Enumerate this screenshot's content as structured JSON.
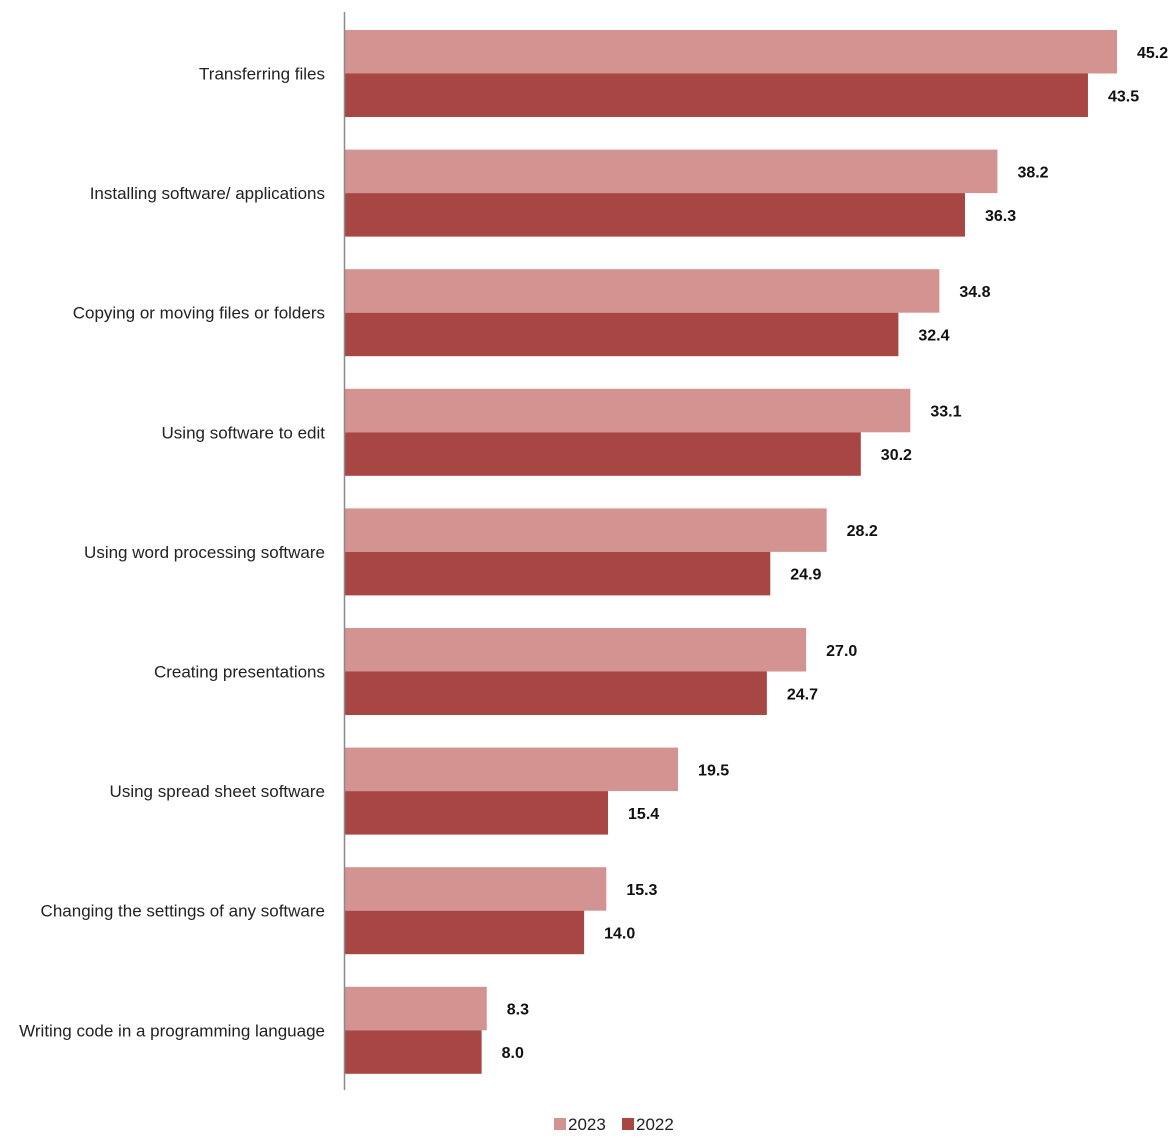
{
  "chart_data": {
    "type": "bar",
    "orientation": "horizontal",
    "title": "",
    "xlabel": "",
    "ylabel": "",
    "xlim": [
      0,
      45.2
    ],
    "grid": false,
    "legend_position": "bottom-center",
    "categories": [
      "Transferring files",
      "Installing software/ applications",
      "Copying or moving files or folders",
      "Using software to edit",
      "Using word processing software",
      "Creating presentations",
      "Using spread sheet software",
      "Changing the settings of any software",
      "Writing code in a programming language"
    ],
    "series": [
      {
        "name": "2023",
        "color": "#d39391",
        "values": [
          45.2,
          38.2,
          34.8,
          33.1,
          28.2,
          27.0,
          19.5,
          15.3,
          8.3
        ],
        "labels": [
          "45.2",
          "38.2",
          "34.8",
          "33.1",
          "28.2",
          "27.0",
          "19.5",
          "15.3",
          "8.3"
        ]
      },
      {
        "name": "2022",
        "color": "#a84644",
        "values": [
          43.5,
          36.3,
          32.4,
          30.2,
          24.9,
          24.7,
          15.4,
          14.0,
          8.0
        ],
        "labels": [
          "43.5",
          "36.3",
          "32.4",
          "30.2",
          "24.9",
          "24.7",
          "15.4",
          "14.0",
          "8.0"
        ]
      }
    ]
  }
}
